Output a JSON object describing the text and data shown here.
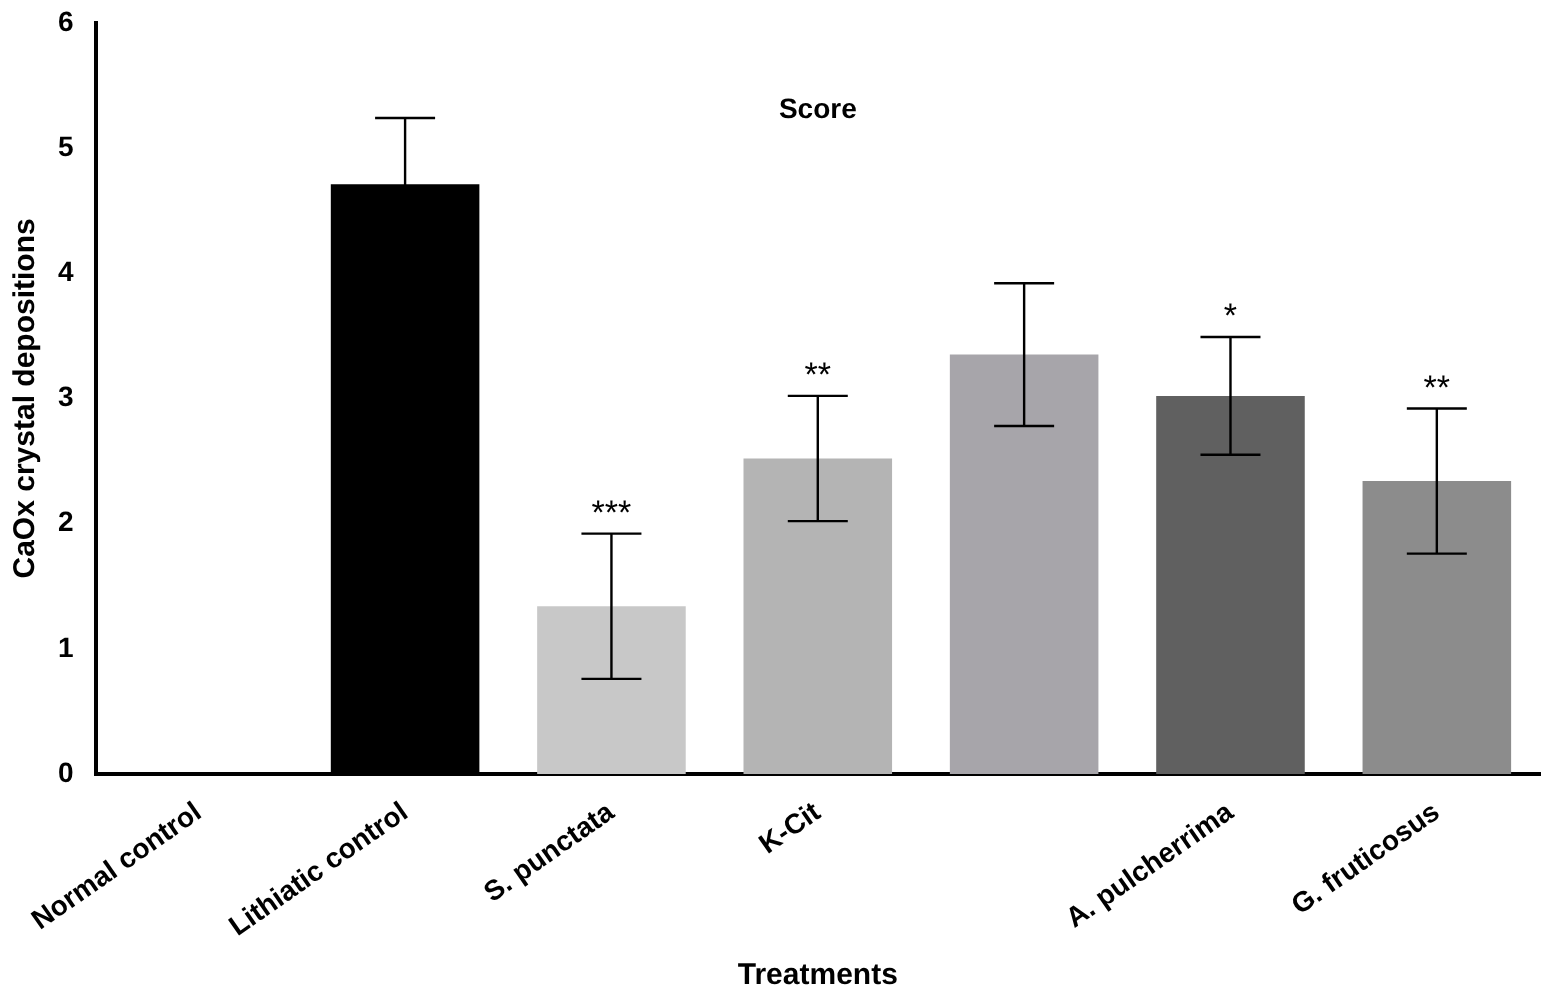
{
  "chart_data": {
    "type": "bar",
    "title": "Score",
    "xlabel": "Treatments",
    "ylabel": "CaOx crystal depositions",
    "categories": [
      "Normal control",
      "Lithiatic control",
      "S. punctata",
      "K-Cit",
      null,
      "A. pulcherrima",
      "G. fruticosus"
    ],
    "values": [
      0,
      4.71,
      1.34,
      2.52,
      3.35,
      3.02,
      2.34
    ],
    "colors": [
      "#ffffff",
      "#000000",
      "#c8c8c8",
      "#b4b4b4",
      "#a7a5aa",
      "#606060",
      "#8c8c8c"
    ],
    "errors": [
      null,
      0.53,
      0.58,
      0.5,
      0.57,
      0.47,
      0.58
    ],
    "ylim": [
      0,
      6
    ],
    "yticks": [
      0,
      1,
      2,
      3,
      4,
      5,
      6
    ],
    "grid": false,
    "legend": false,
    "annotations": [
      {
        "text": "***",
        "x": "S. punctata",
        "y": 1.92
      },
      {
        "text": "**",
        "x": "K-Cit",
        "y": 3.02
      },
      {
        "text": "*",
        "x": "A. pulcherrima",
        "y": 3.49
      },
      {
        "text": "**",
        "x": "G. fruticosus",
        "y": 2.92
      }
    ]
  }
}
